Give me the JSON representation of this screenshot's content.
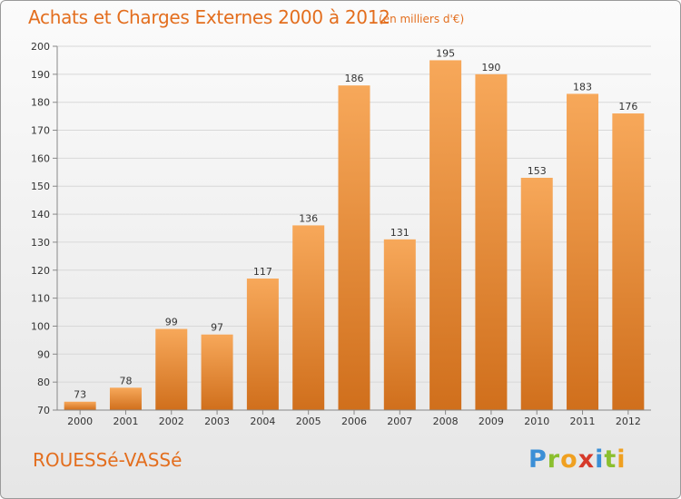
{
  "header": {
    "title": "Achats et Charges Externes 2000 à 2012",
    "subtitle": "(en milliers d'€)"
  },
  "footer": {
    "commune": "ROUESSé-VASSé",
    "logo_letters": [
      "P",
      "r",
      "o",
      "x",
      "i",
      "t",
      "i"
    ],
    "logo_colors": [
      "#3b8fd6",
      "#8bbf2e",
      "#f0a020",
      "#d63a2a",
      "#3b8fd6",
      "#8bbf2e",
      "#f0a020"
    ]
  },
  "colors": {
    "bar_light": "#f7a85a",
    "bar_dark": "#d06f1c",
    "accent": "#e36e1e",
    "grid": "#d8d8d8",
    "axis_text": "#333333"
  },
  "chart_data": {
    "type": "bar",
    "title": "Achats et Charges Externes 2000 à 2012",
    "subtitle": "(en milliers d'€)",
    "categories": [
      "2000",
      "2001",
      "2002",
      "2003",
      "2004",
      "2005",
      "2006",
      "2007",
      "2008",
      "2009",
      "2010",
      "2011",
      "2012"
    ],
    "values": [
      73,
      78,
      99,
      97,
      117,
      136,
      186,
      131,
      195,
      190,
      153,
      183,
      176
    ],
    "ylim": [
      70,
      200
    ],
    "yticks": [
      70,
      80,
      90,
      100,
      110,
      120,
      130,
      140,
      150,
      160,
      170,
      180,
      190,
      200
    ],
    "grid": true,
    "data_labels": true,
    "legend": "none"
  }
}
